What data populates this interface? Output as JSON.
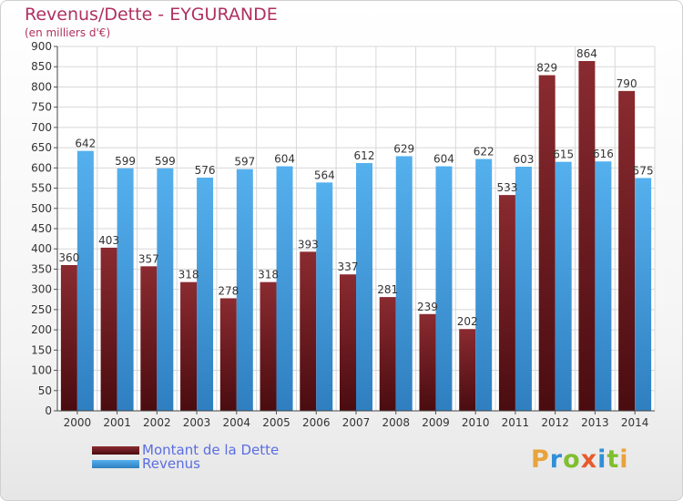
{
  "header": {
    "title": "Revenus/Dette - EYGURANDE",
    "subtitle": "(en milliers d'€)"
  },
  "legend": {
    "dette_label": "Montant de la Dette",
    "revenus_label": "Revenus"
  },
  "logo": {
    "text": "Proxiti",
    "letters": [
      "P",
      "r",
      "o",
      "x",
      "i",
      "t",
      "i"
    ],
    "colors": [
      "#e8a33c",
      "#2f8fd8",
      "#7fbf2e",
      "#e85a2b",
      "#2f8fd8",
      "#7fbf2e",
      "#e8a33c"
    ]
  },
  "colors": {
    "dette": "#7a2328",
    "dette_dark": "#4a0c10",
    "revenus": "#4da8e8",
    "revenus_dark": "#2f7fc0",
    "title": "#b03060",
    "legend_text": "#5a6ee0"
  },
  "chart_data": {
    "type": "bar",
    "title": "Revenus/Dette - EYGURANDE",
    "subtitle": "(en milliers d'€)",
    "xlabel": "",
    "ylabel": "",
    "ylim": [
      0,
      900
    ],
    "ytick_step": 50,
    "grid": true,
    "legend_position": "bottom-left",
    "categories": [
      "2000",
      "2001",
      "2002",
      "2003",
      "2004",
      "2005",
      "2006",
      "2007",
      "2008",
      "2009",
      "2010",
      "2011",
      "2012",
      "2013",
      "2014"
    ],
    "series": [
      {
        "name": "Montant de la Dette",
        "values": [
          360,
          403,
          357,
          318,
          278,
          318,
          393,
          337,
          281,
          239,
          202,
          533,
          829,
          864,
          790
        ]
      },
      {
        "name": "Revenus",
        "values": [
          642,
          599,
          599,
          576,
          597,
          604,
          564,
          612,
          629,
          604,
          622,
          603,
          615,
          616,
          575
        ]
      }
    ]
  }
}
